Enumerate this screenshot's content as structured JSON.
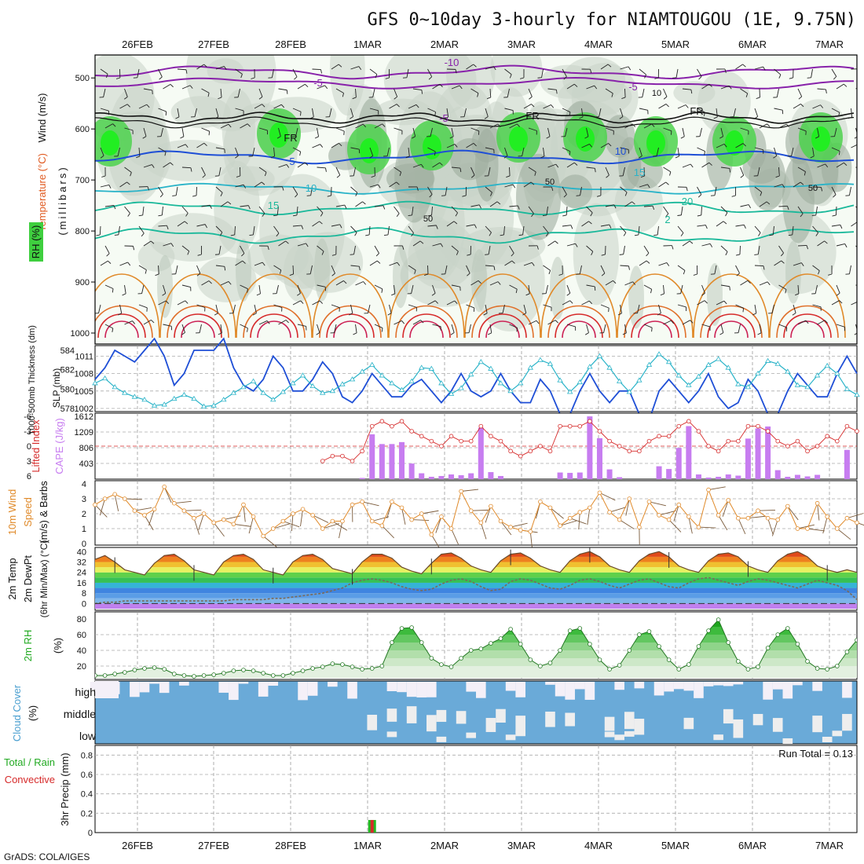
{
  "title": "GFS 0~10day 3-hourly for NIAMTOUGOU (1E, 9.75N)",
  "credit": "GrADS: COLA/IGES",
  "dates": [
    "26FEB",
    "27FEB",
    "28FEB",
    "1MAR",
    "2MAR",
    "3MAR",
    "4MAR",
    "5MAR",
    "6MAR",
    "7MAR"
  ],
  "colors": {
    "purple": "#8822aa",
    "blue": "#1f4fd6",
    "cyan": "#29b3c8",
    "teal": "#19b89a",
    "orange": "#e08a2a",
    "red": "#d62a2a",
    "cape": "#c77df0",
    "green": "#22bb22",
    "cloudbg": "#6aaad8",
    "gray": "#9a9a9a"
  },
  "panels": {
    "upper": {
      "label_wind": "Wind (m/s)",
      "label_temp": "Temperature (°C)",
      "label_rh": "RH (%)",
      "label_mb": "(millibars)",
      "yticks": [
        500,
        600,
        700,
        800,
        900,
        1000
      ],
      "contour_labels": [
        "-10",
        "-5",
        "-5",
        "FR",
        "FR",
        "FR",
        "-5",
        "5",
        "10",
        "10",
        "15",
        "15",
        "20",
        "2"
      ],
      "minor_labels": [
        "10",
        "50",
        "50",
        "50"
      ]
    },
    "slp": {
      "label_thick": "1000-500mb Thickness (dm)",
      "label_slp": "SLP (mb)",
      "yticks_left": [
        578,
        580,
        582,
        584
      ],
      "yticks_right": [
        1002,
        1005,
        1008,
        1011
      ]
    },
    "cape": {
      "label_li": "Lifted Index",
      "label_cape": "CAPE (J/kg)",
      "yticks_left": [
        6,
        3,
        0,
        -3,
        -6
      ],
      "yticks_right": [
        403,
        806,
        1209,
        1612
      ]
    },
    "wind": {
      "label1": "10m Wind",
      "label2": "Speed",
      "label3": "(m/s) & Barbs",
      "yticks": [
        0,
        1,
        2,
        3,
        4
      ]
    },
    "temp": {
      "label1": "2m Temp",
      "label2": "2m DewPt",
      "label3": "(6hr Min/Max) (°C)",
      "yticks": [
        0,
        8,
        16,
        24,
        32,
        40
      ]
    },
    "rh": {
      "label1": "2m RH",
      "label2": "(%)",
      "yticks": [
        20,
        40,
        60,
        80
      ]
    },
    "cloud": {
      "label1": "Cloud Cover",
      "label2": "(%)",
      "levels": [
        "high",
        "middle",
        "low"
      ]
    },
    "precip": {
      "label1": "3hr Precip (mm)",
      "label2": "Total / Rain",
      "label3": "Convective",
      "run_total": "Run Total = 0.13",
      "yticks": [
        0,
        0.2,
        0.4,
        0.6,
        0.8
      ]
    }
  },
  "chart_data": [
    {
      "type": "line",
      "title": "",
      "xlabel": "",
      "ylabel": "SLP (mb)",
      "x_range": [
        "25FEB12Z",
        "7MAR03Z"
      ],
      "series": [
        {
          "name": "SLP (mb)",
          "values": [
            1007,
            1009,
            1012,
            1011,
            1010,
            1012,
            1014,
            1011,
            1006,
            1008,
            1012,
            1012,
            1012,
            1014,
            1009,
            1006,
            1005,
            1007,
            1011,
            1009,
            1005,
            1005,
            1007,
            1010,
            1008,
            1004,
            1003,
            1005,
            1008,
            1006,
            1004,
            1004,
            1006,
            1007,
            1005,
            1003,
            1005,
            1008,
            1005,
            1004,
            1005,
            1008,
            1005,
            1003,
            1003,
            1007,
            1005,
            1001,
            1001,
            1005,
            1008,
            1005,
            1003,
            1005,
            1005,
            1001,
            1000,
            1005,
            1007,
            1005,
            1003,
            1005,
            1008,
            1004,
            1002,
            1003,
            1007,
            1005,
            1001,
            1001,
            1005,
            1008,
            1006,
            1004,
            1004,
            1008,
            1011,
            1008
          ]
        },
        {
          "name": "1000-500mb Thickness (dm)",
          "values": [
            580.6,
            581.1,
            580.2,
            579.6,
            579.2,
            578.9,
            578.3,
            578.4,
            579.0,
            579.4,
            579.0,
            578.2,
            578.3,
            578.9,
            579.6,
            580.2,
            580.8,
            579.6,
            578.9,
            579.7,
            580.6,
            581.4,
            580.3,
            579.6,
            579.8,
            580.5,
            581.0,
            581.8,
            582.5,
            581.4,
            580.6,
            579.9,
            580.8,
            582.2,
            582.1,
            580.6,
            579.5,
            580.1,
            581.5,
            582.8,
            582.1,
            580.6,
            579.8,
            580.6,
            582.2,
            583.0,
            582.6,
            580.9,
            579.7,
            580.7,
            582.3,
            583.4,
            582.2,
            580.8,
            579.7,
            580.9,
            582.5,
            583.6,
            582.8,
            581.4,
            580.4,
            581.3,
            582.5,
            583.1,
            582.2,
            580.5,
            580.2,
            581.6,
            582.9,
            582.6,
            581.8,
            580.4,
            580.2,
            581.4,
            582.4,
            581.6,
            580.0,
            579.4
          ]
        }
      ]
    },
    {
      "type": "bar",
      "title": "",
      "ylabel": "CAPE (J/kg)",
      "x_range": [
        "25FEB12Z",
        "7MAR03Z"
      ],
      "series": [
        {
          "name": "CAPE (J/kg)",
          "values": [
            0,
            0,
            0,
            0,
            0,
            0,
            0,
            0,
            0,
            0,
            0,
            0,
            0,
            0,
            0,
            0,
            0,
            0,
            0,
            0,
            0,
            0,
            0,
            0,
            0,
            0,
            0,
            30,
            1150,
            900,
            900,
            950,
            400,
            150,
            60,
            80,
            120,
            100,
            150,
            1320,
            180,
            80,
            0,
            0,
            0,
            0,
            0,
            170,
            160,
            170,
            1610,
            1050,
            250,
            50,
            0,
            0,
            0,
            330,
            260,
            800,
            1360,
            120,
            40,
            60,
            120,
            90,
            1040,
            1300,
            1350,
            230,
            60,
            110,
            70,
            110,
            0,
            0,
            750,
            0
          ]
        },
        {
          "name": "Lifted Index",
          "values": [
            null,
            null,
            null,
            null,
            null,
            null,
            null,
            null,
            null,
            null,
            null,
            null,
            null,
            null,
            null,
            null,
            null,
            null,
            null,
            null,
            null,
            null,
            null,
            3,
            2,
            2,
            3,
            1,
            -4,
            -5,
            -4,
            -5,
            -3,
            -2,
            -1,
            0,
            -2,
            -1,
            -1,
            -4,
            -2,
            -1,
            1,
            2,
            1,
            0,
            1,
            -4,
            -4,
            -4,
            -5,
            -3,
            -1,
            0,
            1,
            1,
            -1,
            -2,
            -2,
            -4,
            -5,
            -3,
            0,
            1,
            -1,
            -1,
            -4,
            -4,
            -3,
            -1,
            0,
            -1,
            1,
            0,
            -2,
            -1,
            -4,
            -3
          ]
        }
      ]
    },
    {
      "type": "line",
      "title": "",
      "ylabel": "(m/s) & Barbs",
      "x_range": [
        "25FEB12Z",
        "7MAR03Z"
      ],
      "series": [
        {
          "name": "10m Wind Speed",
          "values": [
            2.6,
            3.0,
            3.3,
            3.0,
            2.2,
            1.9,
            2.3,
            3.8,
            2.7,
            2.2,
            1.7,
            2.0,
            1.4,
            1.6,
            1.3,
            2.6,
            1.8,
            0.5,
            1.0,
            1.5,
            2.0,
            2.3,
            1.9,
            1.0,
            1.5,
            1.5,
            2.6,
            2.8,
            1.5,
            1.2,
            2.8,
            2.4,
            1.6,
            2.0,
            0.6,
            1.8,
            1.0,
            3.5,
            2.2,
            1.4,
            2.5,
            1.5,
            1.1,
            0.9,
            0.8,
            2.8,
            2.4,
            1.2,
            1.7,
            2.1,
            2.4,
            3.4,
            2.1,
            1.6,
            3.0,
            1.1,
            2.8,
            1.9,
            1.6,
            2.6,
            1.8,
            1.1,
            3.6,
            1.9,
            2.9,
            1.7,
            1.7,
            2.2,
            1.7,
            1.6,
            2.5,
            1.0,
            1.0,
            2.7,
            1.8,
            1.0,
            1.7,
            1.4
          ]
        }
      ]
    },
    {
      "type": "area",
      "title": "",
      "ylabel": "(°C)",
      "x_range": [
        "25FEB12Z",
        "7MAR03Z"
      ],
      "series": [
        {
          "name": "2m Temp",
          "values": [
            34,
            37,
            32,
            26,
            24,
            22,
            31,
            37,
            38,
            33,
            26,
            24,
            22,
            32,
            37,
            38,
            34,
            26,
            24,
            22,
            32,
            37,
            38,
            34,
            27,
            25,
            23,
            32,
            38,
            38,
            35,
            28,
            25,
            23,
            31,
            38,
            39,
            35,
            29,
            26,
            24,
            33,
            38,
            39,
            35,
            29,
            26,
            24,
            33,
            38,
            40,
            36,
            29,
            26,
            24,
            33,
            38,
            40,
            36,
            29,
            26,
            24,
            33,
            38,
            39,
            36,
            29,
            26,
            24,
            33,
            38,
            40,
            36,
            29,
            26,
            24,
            26,
            24
          ]
        },
        {
          "name": "2m DewPt",
          "values": [
            0,
            1,
            1,
            2,
            2,
            2,
            2,
            2,
            2,
            2,
            2,
            2,
            2,
            2,
            3,
            3,
            3,
            3,
            4,
            4,
            5,
            6,
            7,
            8,
            10,
            12,
            16,
            18,
            19,
            18,
            16,
            13,
            11,
            10,
            11,
            15,
            18,
            19,
            17,
            13,
            10,
            11,
            17,
            19,
            18,
            15,
            12,
            11,
            14,
            18,
            19,
            17,
            14,
            12,
            15,
            18,
            19,
            16,
            13,
            12,
            16,
            19,
            20,
            18,
            16,
            14,
            17,
            19,
            18,
            16,
            14,
            12,
            15,
            18,
            16,
            14,
            10,
            3
          ]
        }
      ]
    },
    {
      "type": "area",
      "title": "",
      "ylabel": "(%)",
      "x_range": [
        "25FEB12Z",
        "7MAR03Z"
      ],
      "series": [
        {
          "name": "2m RH",
          "values": [
            8,
            8,
            10,
            12,
            15,
            17,
            18,
            16,
            10,
            8,
            7,
            8,
            9,
            11,
            14,
            15,
            14,
            11,
            8,
            8,
            11,
            14,
            17,
            19,
            23,
            22,
            19,
            16,
            17,
            20,
            50,
            68,
            69,
            50,
            30,
            22,
            19,
            30,
            40,
            42,
            49,
            55,
            67,
            48,
            28,
            20,
            24,
            40,
            65,
            68,
            48,
            28,
            16,
            21,
            40,
            60,
            64,
            45,
            28,
            16,
            22,
            45,
            65,
            79,
            50,
            26,
            16,
            19,
            43,
            60,
            68,
            48,
            26,
            17,
            16,
            20,
            38,
            53
          ]
        }
      ]
    },
    {
      "type": "bar",
      "title": "",
      "ylabel": "3hr Precip (mm)",
      "x_range": [
        "25FEB12Z",
        "7MAR03Z"
      ],
      "ylim": [
        0,
        0.9
      ],
      "series": [
        {
          "name": "Total / Rain",
          "values": [
            {
              "x": "1MAR00Z",
              "y": 0.13
            }
          ]
        },
        {
          "name": "Convective",
          "values": [
            {
              "x": "1MAR00Z",
              "y": 0.13
            }
          ]
        }
      ]
    }
  ]
}
